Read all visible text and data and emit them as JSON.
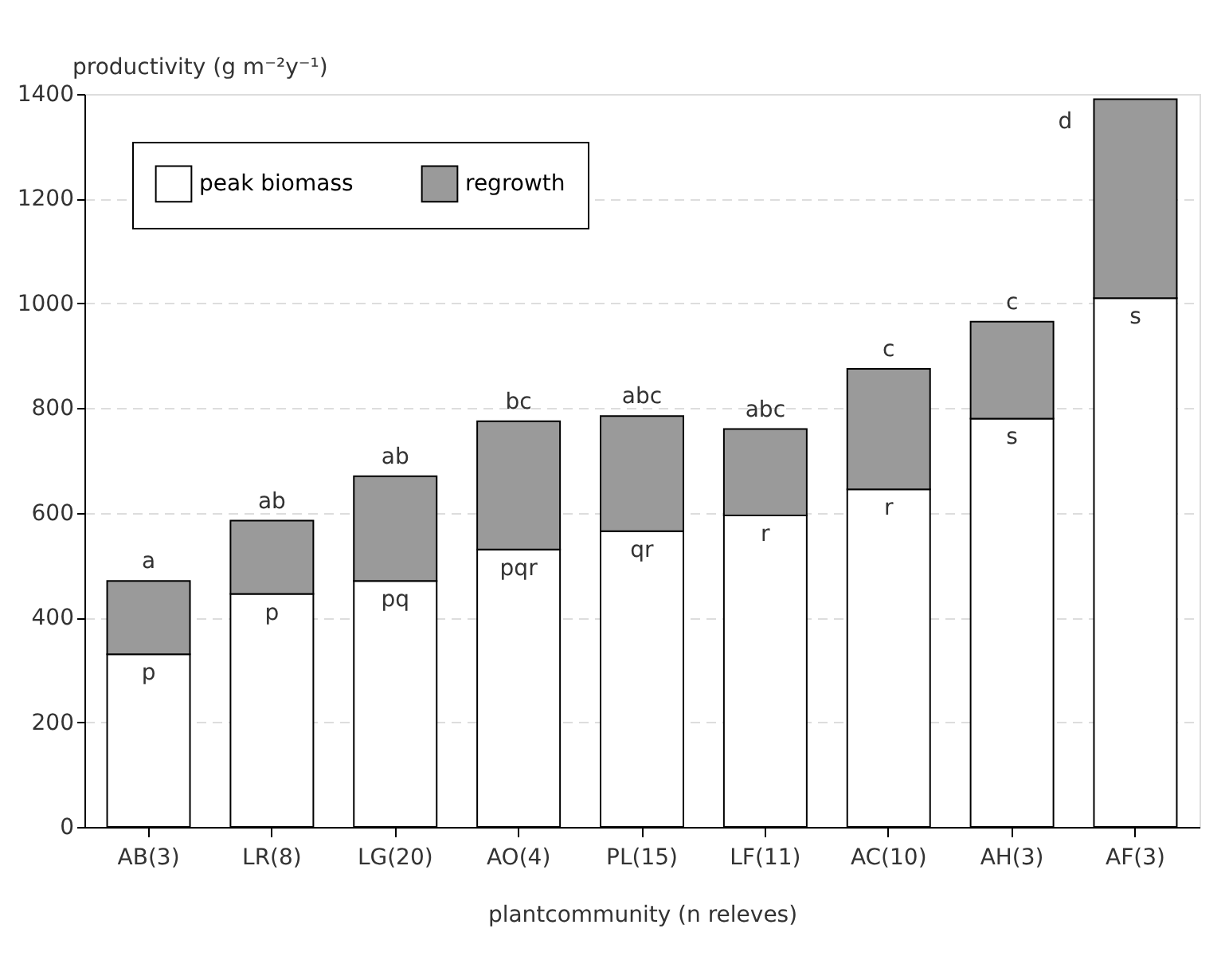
{
  "chart_data": {
    "type": "bar",
    "stacked": true,
    "xlabel": "plantcommunity (n releves)",
    "ylabel": "productivity (g m⁻²y⁻¹)",
    "categories": [
      "AB(3)",
      "LR(8)",
      "LG(20)",
      "AO(4)",
      "PL(15)",
      "LF(11)",
      "AC(10)",
      "AH(3)",
      "AF(3)"
    ],
    "series": [
      {
        "name": "peak biomass",
        "color": "#ffffff",
        "values": [
          330,
          445,
          470,
          530,
          565,
          595,
          645,
          780,
          1010
        ]
      },
      {
        "name": "regrowth",
        "color": "#9a9a9a",
        "values": [
          140,
          140,
          200,
          245,
          220,
          165,
          230,
          185,
          380
        ]
      }
    ],
    "ylim": [
      0,
      1400
    ],
    "yticks": [
      0,
      200,
      400,
      600,
      800,
      1000,
      1200,
      1400
    ],
    "grid": "y",
    "legend": "top left",
    "annotations": [
      {
        "text": "a",
        "x": "AB(3)",
        "y": 470
      },
      {
        "text": "p",
        "x": "AB(3)",
        "y": 330
      },
      {
        "text": "ab",
        "x": "LR(8)",
        "y": 585
      },
      {
        "text": "p",
        "x": "LR(8)",
        "y": 445
      },
      {
        "text": "ab",
        "x": "LG(20)",
        "y": 670
      },
      {
        "text": "pq",
        "x": "LG(20)",
        "y": 470
      },
      {
        "text": "bc",
        "x": "AO(4)",
        "y": 775
      },
      {
        "text": "pqr",
        "x": "AO(4)",
        "y": 530
      },
      {
        "text": "abc",
        "x": "PL(15)",
        "y": 785
      },
      {
        "text": "qr",
        "x": "PL(15)",
        "y": 565
      },
      {
        "text": "abc",
        "x": "LF(11)",
        "y": 760
      },
      {
        "text": "r",
        "x": "LF(11)",
        "y": 595
      },
      {
        "text": "c",
        "x": "AC(10)",
        "y": 875
      },
      {
        "text": "r",
        "x": "AC(10)",
        "y": 645
      },
      {
        "text": "c",
        "x": "AH(3)",
        "y": 965
      },
      {
        "text": "s",
        "x": "AH(3)",
        "y": 780
      },
      {
        "text": "d",
        "x": "AF(3)",
        "y": 1390
      },
      {
        "text": "s",
        "x": "AF(3)",
        "y": 1010
      }
    ]
  }
}
